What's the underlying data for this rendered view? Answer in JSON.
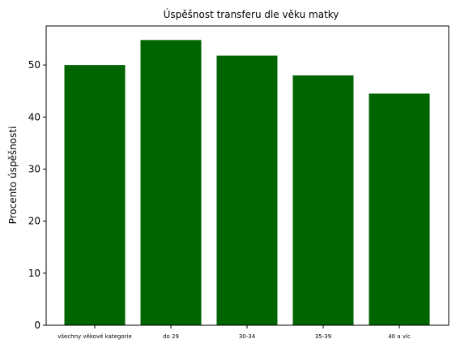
{
  "chart_data": {
    "type": "bar",
    "title": "Úspěšnost transferu dle věku matky",
    "xlabel": "",
    "ylabel": "Procento úspěšnosti",
    "categories": [
      "všechny věkové kategorie",
      "do 29",
      "30-34",
      "35-39",
      "40 a víc"
    ],
    "values": [
      50.0,
      54.8,
      51.8,
      48.0,
      44.5
    ],
    "ylim": [
      0,
      57.5
    ],
    "yticks": [
      0,
      10,
      20,
      30,
      40,
      50
    ],
    "bar_color": "#006400",
    "grid": false,
    "legend": "none"
  }
}
